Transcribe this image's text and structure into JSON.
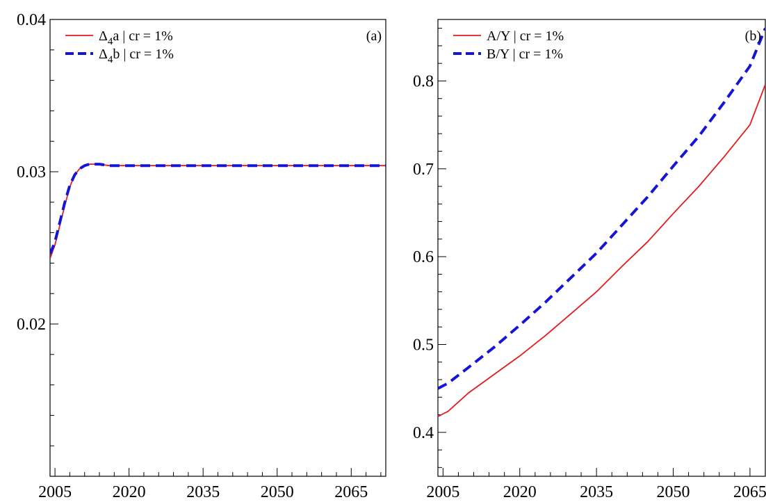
{
  "chart_data": [
    {
      "type": "line",
      "panel_label": "(a)",
      "title": "",
      "xlabel": "",
      "ylabel": "",
      "xlim": [
        2004,
        2072
      ],
      "ylim": [
        0.01,
        0.04
      ],
      "xticks": [
        2005,
        2020,
        2035,
        2050,
        2065
      ],
      "xtick_labels": [
        "2005",
        "2020",
        "2035",
        "2050",
        "2065"
      ],
      "yticks": [
        0.02,
        0.03,
        0.04
      ],
      "ytick_labels": [
        "0.02",
        "0.03",
        "0.04"
      ],
      "grid": false,
      "legend_position": "top-left",
      "series": [
        {
          "name": "Δ4a | cr = 1%",
          "legend_main": "Δ",
          "legend_sub": "4",
          "legend_rest": "a | cr = 1%",
          "color": "#e41a1c",
          "style": "solid",
          "x": [
            2004,
            2005,
            2006,
            2007,
            2008,
            2009,
            2010,
            2011,
            2012,
            2013,
            2014,
            2016,
            2018,
            2020,
            2030,
            2050,
            2072
          ],
          "y": [
            0.0243,
            0.0252,
            0.0265,
            0.0278,
            0.029,
            0.0298,
            0.0302,
            0.0304,
            0.0305,
            0.0305,
            0.0305,
            0.0304,
            0.0304,
            0.0304,
            0.0304,
            0.0304,
            0.0304
          ]
        },
        {
          "name": "Δ4b | cr = 1%",
          "legend_main": "Δ",
          "legend_sub": "4",
          "legend_rest": "b | cr = 1%",
          "color": "#1515d6",
          "style": "dashed",
          "x": [
            2004,
            2005,
            2006,
            2007,
            2008,
            2009,
            2010,
            2011,
            2012,
            2013,
            2014,
            2016,
            2018,
            2020,
            2030,
            2050,
            2072
          ],
          "y": [
            0.0246,
            0.0254,
            0.0267,
            0.028,
            0.0291,
            0.0298,
            0.0302,
            0.0304,
            0.0305,
            0.0305,
            0.0305,
            0.0304,
            0.0304,
            0.0304,
            0.0304,
            0.0304,
            0.0304
          ]
        }
      ]
    },
    {
      "type": "line",
      "panel_label": "(b)",
      "title": "",
      "xlabel": "",
      "ylabel": "",
      "xlim": [
        2004,
        2068
      ],
      "ylim": [
        0.35,
        0.87
      ],
      "xticks": [
        2005,
        2020,
        2035,
        2050,
        2065
      ],
      "xtick_labels": [
        "2005",
        "2020",
        "2035",
        "2050",
        "2065"
      ],
      "yticks": [
        0.4,
        0.5,
        0.6,
        0.7,
        0.8
      ],
      "ytick_labels": [
        "0.4",
        "0.5",
        "0.6",
        "0.7",
        "0.8"
      ],
      "grid": false,
      "legend_position": "top-left",
      "series": [
        {
          "name": "A/Y | cr = 1%",
          "legend_main": "A/Y | cr = 1%",
          "legend_sub": "",
          "legend_rest": "",
          "color": "#e41a1c",
          "style": "solid",
          "x": [
            2004,
            2006,
            2010,
            2015,
            2020,
            2025,
            2030,
            2035,
            2040,
            2045,
            2050,
            2055,
            2060,
            2065,
            2068
          ],
          "y": [
            0.418,
            0.424,
            0.445,
            0.466,
            0.487,
            0.51,
            0.535,
            0.56,
            0.589,
            0.617,
            0.649,
            0.68,
            0.714,
            0.75,
            0.796
          ]
        },
        {
          "name": "B/Y | cr = 1%",
          "legend_main": "B/Y | cr = 1%",
          "legend_sub": "",
          "legend_rest": "",
          "color": "#1515d6",
          "style": "dashed",
          "x": [
            2004,
            2006,
            2010,
            2015,
            2020,
            2025,
            2030,
            2035,
            2040,
            2045,
            2050,
            2055,
            2060,
            2065,
            2068
          ],
          "y": [
            0.45,
            0.456,
            0.474,
            0.497,
            0.522,
            0.548,
            0.576,
            0.604,
            0.636,
            0.668,
            0.703,
            0.737,
            0.776,
            0.817,
            0.86
          ]
        }
      ]
    }
  ]
}
